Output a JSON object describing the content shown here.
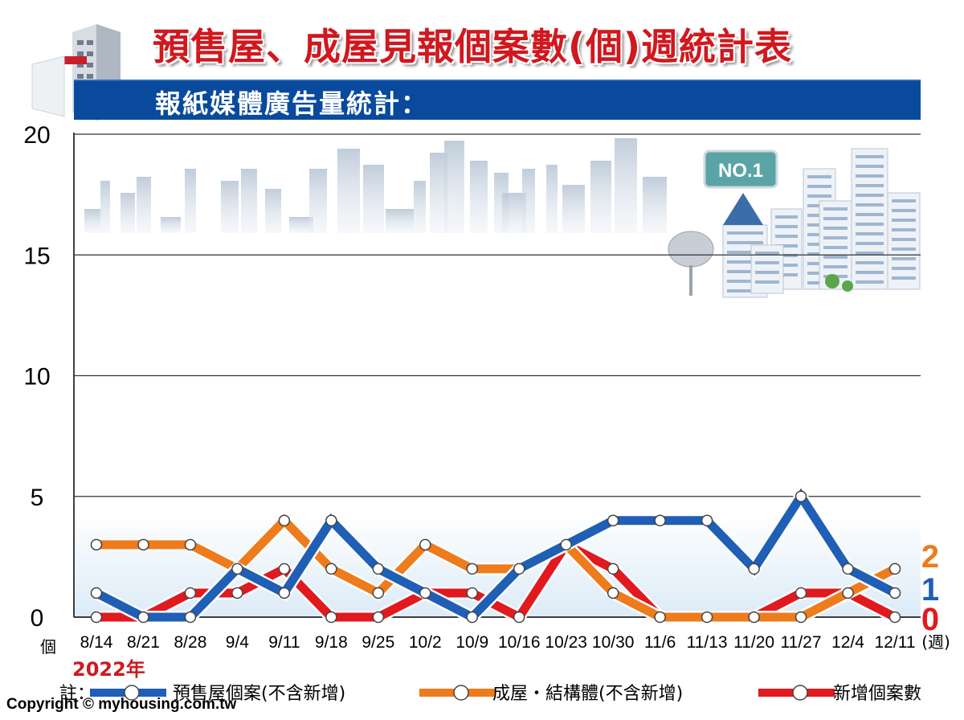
{
  "header": {
    "title": "預售屋、成屋見報個案數(個)週統計表",
    "subtitle": "報紙媒體廣告量統計："
  },
  "year_label": "2022年",
  "y_unit": "個",
  "x_unit": "(週)",
  "note_label": "註：",
  "copyright": "Copyright © myhousing.com.tw",
  "colors": {
    "presale": "#1f5fb5",
    "existing": "#ee7b1c",
    "new": "#e01a1f",
    "title": "#d0181e",
    "banner": "#0a4a9c"
  },
  "chart_data": {
    "type": "line",
    "categories": [
      "8/14",
      "8/21",
      "8/28",
      "9/4",
      "9/11",
      "9/18",
      "9/25",
      "10/2",
      "10/9",
      "10/16",
      "10/23",
      "10/30",
      "11/6",
      "11/13",
      "11/20",
      "11/27",
      "12/4",
      "12/11"
    ],
    "ylim": [
      0,
      20
    ],
    "yticks": [
      0,
      5,
      10,
      15,
      20
    ],
    "grid": true,
    "series": [
      {
        "name": "預售屋個案(不含新增)",
        "key": "presale",
        "values": [
          1,
          0,
          0,
          2,
          1,
          4,
          2,
          1,
          0,
          2,
          3,
          4,
          4,
          4,
          2,
          5,
          2,
          1
        ],
        "end_label": "1"
      },
      {
        "name": "成屋・結構體(不含新增)",
        "key": "existing",
        "values": [
          3,
          3,
          3,
          2,
          4,
          2,
          1,
          3,
          2,
          2,
          3,
          1,
          0,
          0,
          0,
          0,
          1,
          2
        ],
        "end_label": "2"
      },
      {
        "name": "新增個案數",
        "key": "new",
        "values": [
          0,
          0,
          1,
          1,
          2,
          0,
          0,
          1,
          1,
          0,
          3,
          2,
          0,
          0,
          0,
          1,
          1,
          0
        ],
        "end_label": "0"
      }
    ],
    "legend_position": "bottom"
  }
}
